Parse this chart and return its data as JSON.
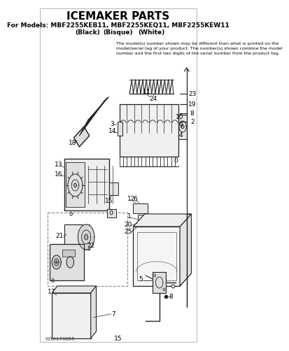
{
  "title": "ICEMAKER PARTS",
  "subtitle": "For Models: MBF2255KEB11, MBF2255KEQ11, MBF2255KEW11",
  "subtitle_parts": [
    "(Black)",
    "(Bisque)",
    "(White)"
  ],
  "note_line1": "The model(s) number shown may be different than what is printed on the",
  "note_line2": "model/serial tag of your product. The number(s) shown combine the model",
  "note_line3": "number and the first two digits of the serial number from the product tag.",
  "doc_number": "W10170855",
  "page_number": "15",
  "bg_color": "#ffffff",
  "line_color": "#222222",
  "text_color": "#000000",
  "label_fs": 6.5,
  "title_fs": 11,
  "sub_fs": 6.5,
  "note_fs": 4.5
}
